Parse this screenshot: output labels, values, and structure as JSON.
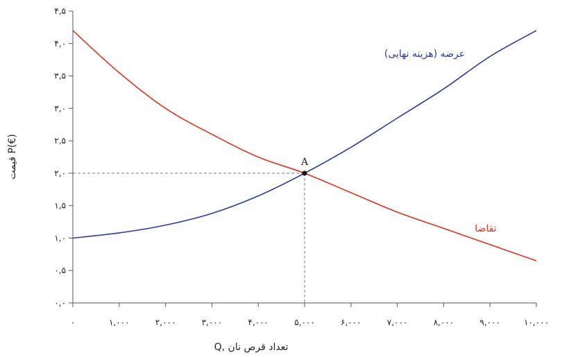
{
  "chart_data": {
    "type": "line",
    "xlabel": "Q, تعداد قرص نان",
    "ylabel": "قیمت P(€)",
    "xlim": [
      0,
      10000
    ],
    "ylim": [
      0,
      4.5
    ],
    "x_ticks": [
      0,
      1000,
      2000,
      3000,
      4000,
      5000,
      6000,
      7000,
      8000,
      9000,
      10000
    ],
    "x_tick_labels": [
      "۰",
      "۱,۰۰۰",
      "۲,۰۰۰",
      "۳,۰۰۰",
      "۴,۰۰۰",
      "۵,۰۰۰",
      "۶,۰۰۰",
      "۷,۰۰۰",
      "۸,۰۰۰",
      "۹,۰۰۰",
      "۱۰,۰۰۰"
    ],
    "y_ticks": [
      0,
      0.5,
      1,
      1.5,
      2,
      2.5,
      3,
      3.5,
      4,
      4.5
    ],
    "y_tick_labels": [
      "۰,۰",
      "۰,۵",
      "۱,۰",
      "۱,۵",
      "۲,۰",
      "۲,۵",
      "۳,۰",
      "۳,۵",
      "۴,۰",
      "۴,۵"
    ],
    "grid": false,
    "series": [
      {
        "name": "عرضه (هزینه نهایی)",
        "color": "#2b3a9a",
        "x": [
          0,
          1000,
          2000,
          3000,
          4000,
          5000,
          6000,
          7000,
          8000,
          9000,
          10000
        ],
        "y": [
          1.0,
          1.08,
          1.2,
          1.38,
          1.65,
          2.0,
          2.4,
          2.85,
          3.3,
          3.8,
          4.2
        ]
      },
      {
        "name": "تقاضا",
        "color": "#d9331f",
        "x": [
          0,
          1000,
          2000,
          3000,
          4000,
          5000,
          6000,
          7000,
          8000,
          9000,
          10000
        ],
        "y": [
          4.2,
          3.55,
          3.0,
          2.6,
          2.25,
          2.0,
          1.7,
          1.4,
          1.15,
          0.9,
          0.65
        ]
      }
    ],
    "annotations": [
      {
        "label": "A",
        "x": 5000,
        "y": 2.0
      }
    ]
  }
}
